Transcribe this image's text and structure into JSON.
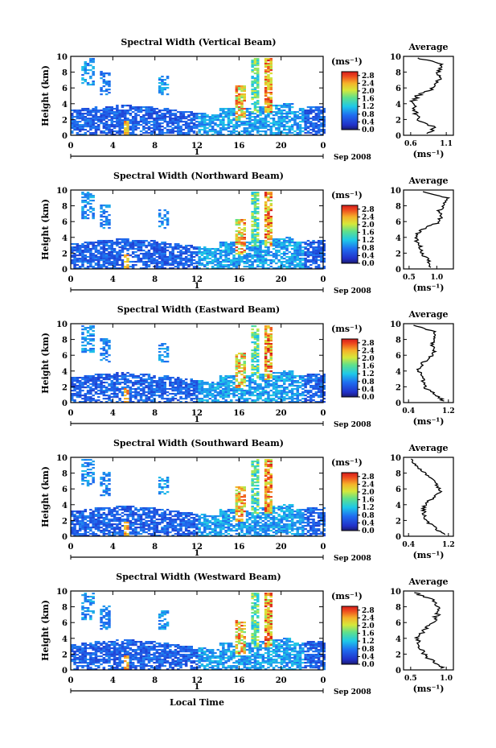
{
  "chart_data": [
    {
      "type": "heatmap",
      "title": "Spectral Width (Vertical Beam)",
      "ylabel": "Height (km)",
      "x_ticks": [
        "0",
        "4",
        "8",
        "12",
        "16",
        "20",
        "0"
      ],
      "y_ticks": [
        "0",
        "2",
        "4",
        "6",
        "8",
        "10"
      ],
      "ylim": [
        0,
        10
      ],
      "xlim": [
        0,
        24
      ],
      "date_marker": "1",
      "date_suffix": "Sep 2008",
      "colorbar": {
        "unit": "(ms⁻¹)",
        "ticks": [
          "0.0",
          "0.4",
          "0.8",
          "1.2",
          "1.6",
          "2.0",
          "2.4",
          "2.8"
        ],
        "range": [
          0,
          3.0
        ]
      },
      "average_profile": {
        "title": "Average",
        "xlabel": "(ms⁻¹)",
        "x_ticks": [
          "0.6",
          "1.1"
        ],
        "xlim": [
          0.5,
          1.2
        ],
        "heights_km": [
          0.2,
          1.0,
          1.8,
          2.6,
          3.4,
          4.2,
          5.0,
          5.8,
          6.6,
          7.4,
          8.2,
          9.0,
          9.8
        ],
        "values": [
          0.85,
          0.95,
          0.72,
          0.68,
          0.65,
          0.62,
          0.7,
          0.88,
          0.95,
          1.02,
          0.98,
          1.05,
          0.7
        ]
      }
    },
    {
      "type": "heatmap",
      "title": "Spectral Width (Northward Beam)",
      "ylabel": "Height (km)",
      "x_ticks": [
        "0",
        "4",
        "8",
        "12",
        "16",
        "20",
        "0"
      ],
      "y_ticks": [
        "0",
        "2",
        "4",
        "6",
        "8",
        "10"
      ],
      "ylim": [
        0,
        10
      ],
      "xlim": [
        0,
        24
      ],
      "date_marker": "1",
      "date_suffix": "Sep 2008",
      "colorbar": {
        "unit": "(ms⁻¹)",
        "ticks": [
          "0.0",
          "0.4",
          "0.8",
          "1.2",
          "1.6",
          "2.0",
          "2.4",
          "2.8"
        ],
        "range": [
          0,
          3.0
        ]
      },
      "average_profile": {
        "title": "Average",
        "xlabel": "(ms⁻¹)",
        "x_ticks": [
          "0.5",
          "1.0"
        ],
        "xlim": [
          0.4,
          1.3
        ],
        "heights_km": [
          0.2,
          1.0,
          1.8,
          2.6,
          3.4,
          4.2,
          5.0,
          5.8,
          6.6,
          7.4,
          8.2,
          9.0,
          9.8
        ],
        "values": [
          0.9,
          0.85,
          0.75,
          0.72,
          0.65,
          0.6,
          0.72,
          1.0,
          1.1,
          1.05,
          1.15,
          1.2,
          0.75
        ]
      }
    },
    {
      "type": "heatmap",
      "title": "Spectral Width (Eastward Beam)",
      "ylabel": "Height (km)",
      "x_ticks": [
        "0",
        "4",
        "8",
        "12",
        "16",
        "20",
        "0"
      ],
      "y_ticks": [
        "0",
        "2",
        "4",
        "6",
        "8",
        "10"
      ],
      "ylim": [
        0,
        10
      ],
      "xlim": [
        0,
        24
      ],
      "date_marker": "1",
      "date_suffix": "Sep 2008",
      "colorbar": {
        "unit": "(ms⁻¹)",
        "ticks": [
          "0.0",
          "0.4",
          "0.8",
          "1.2",
          "1.6",
          "2.0",
          "2.4",
          "2.8"
        ],
        "range": [
          0,
          3.0
        ]
      },
      "average_profile": {
        "title": "Average",
        "xlabel": "(ms⁻¹)",
        "x_ticks": [
          "0.4",
          "1.2"
        ],
        "xlim": [
          0.3,
          1.3
        ],
        "heights_km": [
          0.2,
          1.0,
          1.8,
          2.6,
          3.4,
          4.2,
          5.0,
          5.8,
          6.6,
          7.4,
          8.2,
          9.0,
          9.8
        ],
        "values": [
          1.1,
          0.95,
          0.75,
          0.7,
          0.65,
          0.6,
          0.68,
          0.85,
          0.92,
          0.88,
          0.95,
          0.9,
          0.5
        ]
      }
    },
    {
      "type": "heatmap",
      "title": "Spectral Width (Southward Beam)",
      "ylabel": "Height (km)",
      "x_ticks": [
        "0",
        "4",
        "8",
        "12",
        "16",
        "20",
        "0"
      ],
      "y_ticks": [
        "0",
        "2",
        "4",
        "6",
        "8",
        "10"
      ],
      "ylim": [
        0,
        10
      ],
      "xlim": [
        0,
        24
      ],
      "date_marker": "1",
      "date_suffix": "Sep 2008",
      "colorbar": {
        "unit": "(ms⁻¹)",
        "ticks": [
          "0.0",
          "0.4",
          "0.8",
          "1.2",
          "1.6",
          "2.0",
          "2.4",
          "2.8"
        ],
        "range": [
          0,
          3.0
        ]
      },
      "average_profile": {
        "title": "Average",
        "xlabel": "(ms⁻¹)",
        "x_ticks": [
          "0.4",
          "1.2"
        ],
        "xlim": [
          0.3,
          1.3
        ],
        "heights_km": [
          0.2,
          1.0,
          1.8,
          2.6,
          3.4,
          4.2,
          5.0,
          5.8,
          6.6,
          7.4,
          8.2,
          9.0,
          9.8
        ],
        "values": [
          1.1,
          0.95,
          0.78,
          0.72,
          0.7,
          0.75,
          0.92,
          1.05,
          0.95,
          0.85,
          0.7,
          0.55,
          0.45
        ]
      }
    },
    {
      "type": "heatmap",
      "title": "Spectral Width (Westward Beam)",
      "ylabel": "Height (km)",
      "xlabel": "Local Time",
      "x_ticks": [
        "0",
        "4",
        "8",
        "12",
        "16",
        "20",
        "0"
      ],
      "y_ticks": [
        "0",
        "2",
        "4",
        "6",
        "8",
        "10"
      ],
      "ylim": [
        0,
        10
      ],
      "xlim": [
        0,
        24
      ],
      "date_marker": "1",
      "date_suffix": "Sep 2008",
      "colorbar": {
        "unit": "(ms⁻¹)",
        "ticks": [
          "0.0",
          "0.4",
          "0.8",
          "1.2",
          "1.6",
          "2.0",
          "2.4",
          "2.8"
        ],
        "range": [
          0,
          3.0
        ]
      },
      "average_profile": {
        "title": "Average",
        "xlabel": "(ms⁻¹)",
        "x_ticks": [
          "0.5",
          "1.0"
        ],
        "xlim": [
          0.4,
          1.1
        ],
        "heights_km": [
          0.2,
          1.0,
          1.8,
          2.6,
          3.4,
          4.2,
          5.0,
          5.8,
          6.6,
          7.4,
          8.2,
          9.0,
          9.8
        ],
        "values": [
          0.95,
          0.85,
          0.7,
          0.65,
          0.62,
          0.6,
          0.68,
          0.8,
          0.85,
          0.9,
          0.88,
          0.8,
          0.55
        ]
      }
    }
  ]
}
